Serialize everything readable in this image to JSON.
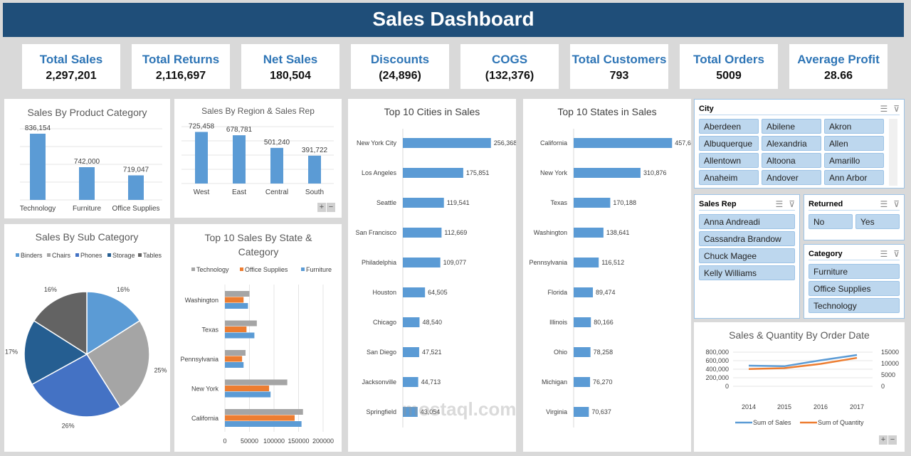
{
  "title": "Sales Dashboard",
  "kpis": [
    {
      "label": "Total Sales",
      "value": "2,297,201"
    },
    {
      "label": "Total Returns",
      "value": "2,116,697"
    },
    {
      "label": "Net Sales",
      "value": "180,504"
    },
    {
      "label": "Discounts",
      "value": "(24,896)"
    },
    {
      "label": "COGS",
      "value": "(132,376)"
    },
    {
      "label": "Total Customers",
      "value": "793"
    },
    {
      "label": "Total Orders",
      "value": "5009"
    },
    {
      "label": "Average Profit",
      "value": "28.66"
    }
  ],
  "colors": {
    "header": "#1f4e79",
    "kpi_label": "#2e75b6",
    "bar": "#5b9bd5",
    "orange": "#ed7d31",
    "gray": "#a5a5a5"
  },
  "slicers": {
    "city": {
      "title": "City",
      "items": [
        "Aberdeen",
        "Abilene",
        "Akron",
        "Albuquerque",
        "Alexandria",
        "Allen",
        "Allentown",
        "Altoona",
        "Amarillo",
        "Anaheim",
        "Andover",
        "Ann Arbor"
      ]
    },
    "sales_rep": {
      "title": "Sales Rep",
      "items": [
        "Anna Andreadi",
        "Cassandra Brandow",
        "Chuck Magee",
        "Kelly Williams"
      ]
    },
    "returned": {
      "title": "Returned",
      "items": [
        "No",
        "Yes"
      ]
    },
    "category": {
      "title": "Category",
      "items": [
        "Furniture",
        "Office Supplies",
        "Technology"
      ]
    }
  },
  "watermark": "mostaql.com",
  "chart_data": [
    {
      "id": "product",
      "type": "bar",
      "title": "Sales By Product Category",
      "categories": [
        "Technology",
        "Furniture",
        "Office Supplies"
      ],
      "values": [
        836154,
        742000,
        719047
      ],
      "labels": [
        "836,154",
        "742,000",
        "719,047"
      ],
      "ylim": [
        650000,
        850000
      ],
      "grid": true
    },
    {
      "id": "region",
      "type": "bar",
      "title": "Sales By Region & Sales Rep",
      "categories": [
        "West",
        "East",
        "Central",
        "South"
      ],
      "values": [
        725458,
        678781,
        501240,
        391722
      ],
      "labels": [
        "725,458",
        "678,781",
        "501,240",
        "391,722"
      ],
      "ylim": [
        0,
        800000
      ],
      "grid": true
    },
    {
      "id": "subcat",
      "type": "pie",
      "title": "Sales By Sub Category",
      "categories": [
        "Binders",
        "Chairs",
        "Phones",
        "Storage",
        "Tables"
      ],
      "values": [
        16,
        25,
        26,
        17,
        16
      ],
      "labels": [
        "16%",
        "25%",
        "26%",
        "17%",
        "16%"
      ],
      "colors": [
        "#5b9bd5",
        "#a5a5a5",
        "#4472c4",
        "#255e91",
        "#636363"
      ],
      "legend": "top"
    },
    {
      "id": "statecat",
      "type": "bar",
      "orientation": "horizontal",
      "title": "Top 10 Sales By State & Category",
      "categories": [
        "Washington",
        "Texas",
        "Pennsylvania",
        "New York",
        "California"
      ],
      "series": [
        {
          "name": "Technology",
          "color": "#a5a5a5",
          "values": [
            50000,
            65000,
            42000,
            127000,
            159000
          ]
        },
        {
          "name": "Office Supplies",
          "color": "#ed7d31",
          "values": [
            38000,
            44000,
            35000,
            90000,
            142000
          ]
        },
        {
          "name": "Furniture",
          "color": "#5b9bd5",
          "values": [
            47000,
            60000,
            38000,
            93000,
            156000
          ]
        }
      ],
      "xticks": [
        "0",
        "50000",
        "100000",
        "150000",
        "200000"
      ],
      "xlim": [
        0,
        200000
      ],
      "grid": true,
      "legend": "top"
    },
    {
      "id": "cities",
      "type": "bar",
      "orientation": "horizontal",
      "title": "Top 10 Cities in Sales",
      "categories": [
        "New York City",
        "Los Angeles",
        "Seattle",
        "San Francisco",
        "Philadelphia",
        "Houston",
        "Chicago",
        "San Diego",
        "Jacksonville",
        "Springfield"
      ],
      "values": [
        256368,
        175851,
        119541,
        112669,
        109077,
        64505,
        48540,
        47521,
        44713,
        43054
      ],
      "labels": [
        "256,368",
        "175,851",
        "119,541",
        "112,669",
        "109,077",
        "64,505",
        "48,540",
        "47,521",
        "44,713",
        "43,054"
      ],
      "xlim": [
        0,
        350000
      ]
    },
    {
      "id": "states",
      "type": "bar",
      "orientation": "horizontal",
      "title": "Top 10 States in Sales",
      "categories": [
        "California",
        "New York",
        "Texas",
        "Washington",
        "Pennsylvania",
        "Florida",
        "Illinois",
        "Ohio",
        "Michigan",
        "Virginia"
      ],
      "values": [
        457688,
        310876,
        170188,
        138641,
        116512,
        89474,
        80166,
        78258,
        76270,
        70637
      ],
      "labels": [
        "457,688",
        "310,876",
        "170,188",
        "138,641",
        "116,512",
        "89,474",
        "80,166",
        "78,258",
        "76,270",
        "70,637"
      ],
      "xlim": [
        0,
        460000
      ]
    },
    {
      "id": "orderdate",
      "type": "line",
      "title": "Sales & Quantity By Order Date",
      "categories": [
        "2014",
        "2015",
        "2016",
        "2017"
      ],
      "series": [
        {
          "name": "Sum of Sales",
          "color": "#5b9bd5",
          "axis": "left",
          "values": [
            484000,
            470000,
            609000,
            733000
          ]
        },
        {
          "name": "Sum of Quantity",
          "color": "#ed7d31",
          "axis": "right",
          "values": [
            7581,
            7979,
            9837,
            12476
          ]
        }
      ],
      "yticks_left": [
        "0",
        "200,000",
        "400,000",
        "600,000",
        "800,000"
      ],
      "ylim_left": [
        0,
        800000
      ],
      "yticks_right": [
        "0",
        "5000",
        "10000",
        "15000"
      ],
      "ylim_right": [
        0,
        15000
      ],
      "grid": true,
      "legend": "bottom"
    }
  ]
}
